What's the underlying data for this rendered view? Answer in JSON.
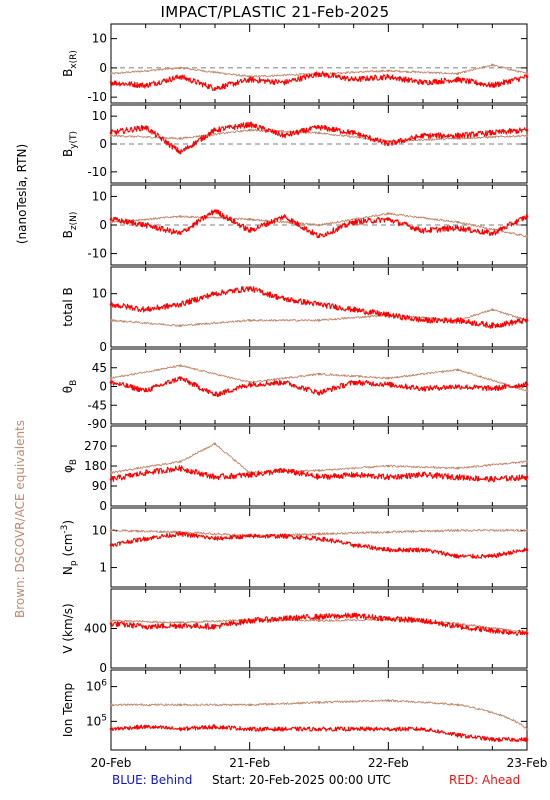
{
  "title": "IMPACT/PLASTIC   21-Feb-2025",
  "side_labels": {
    "units": "(nanoTesla, RTN)",
    "ace": "Brown: DSCOVR/ACE equivalents"
  },
  "footer": {
    "behind": "BLUE: Behind",
    "start": "Start: 20-Feb-2025 00:00 UTC",
    "ahead": "RED: Ahead"
  },
  "colors": {
    "ahead": "#ff0000",
    "ace": "#c08a70",
    "behind": "#1111cc",
    "axis": "#000000"
  },
  "chart_data": [
    {
      "type": "line",
      "id": "bx",
      "ylabel": "B_x(R)",
      "ylim": [
        -12,
        15
      ],
      "yticks": [
        10,
        0,
        -10
      ],
      "zero_line": true,
      "x_unit": "days since 20-Feb-2025 00:00 UTC",
      "series": [
        {
          "name": "Ahead",
          "color": "#ff0000",
          "x": [
            0,
            0.25,
            0.5,
            0.75,
            1.0,
            1.25,
            1.5,
            1.75,
            2.0,
            2.25,
            2.5,
            2.75,
            3.0
          ],
          "y": [
            -5,
            -6,
            -3,
            -7,
            -4,
            -5,
            -2,
            -4,
            -3,
            -5,
            -4,
            -6,
            -3
          ]
        },
        {
          "name": "DSCOVR/ACE",
          "color": "#c08a70",
          "x": [
            0,
            0.5,
            1.0,
            1.5,
            2.0,
            2.5,
            2.75,
            3.0
          ],
          "y": [
            -2,
            0,
            -3,
            -2,
            -1,
            -2,
            1,
            -2
          ]
        }
      ]
    },
    {
      "type": "line",
      "id": "by",
      "ylabel": "B_y(T)",
      "ylim": [
        -14,
        14
      ],
      "yticks": [
        10,
        0,
        -10
      ],
      "zero_line": true,
      "series": [
        {
          "name": "Ahead",
          "color": "#ff0000",
          "x": [
            0,
            0.25,
            0.5,
            0.75,
            1.0,
            1.25,
            1.5,
            1.75,
            2.0,
            2.25,
            2.5,
            2.75,
            3.0
          ],
          "y": [
            4,
            6,
            -3,
            5,
            7,
            3,
            6,
            4,
            0,
            3,
            3,
            4,
            5
          ]
        },
        {
          "name": "DSCOVR/ACE",
          "color": "#c08a70",
          "x": [
            0,
            0.5,
            1.0,
            1.5,
            2.0,
            2.5,
            3.0
          ],
          "y": [
            3,
            2,
            5,
            4,
            1,
            2,
            3
          ]
        }
      ]
    },
    {
      "type": "line",
      "id": "bz",
      "ylabel": "B_z(N)",
      "ylim": [
        -14,
        14
      ],
      "yticks": [
        10,
        0,
        -10
      ],
      "zero_line": true,
      "series": [
        {
          "name": "Ahead",
          "color": "#ff0000",
          "x": [
            0,
            0.25,
            0.5,
            0.75,
            1.0,
            1.25,
            1.5,
            1.75,
            2.0,
            2.25,
            2.5,
            2.75,
            3.0
          ],
          "y": [
            2,
            0,
            -3,
            5,
            -2,
            3,
            -4,
            1,
            2,
            -2,
            -1,
            -3,
            3
          ]
        },
        {
          "name": "DSCOVR/ACE",
          "color": "#c08a70",
          "x": [
            0,
            0.5,
            1.0,
            1.5,
            2.0,
            2.5,
            3.0
          ],
          "y": [
            1,
            3,
            2,
            0,
            4,
            1,
            -4
          ]
        }
      ]
    },
    {
      "type": "line",
      "id": "btot",
      "ylabel": "total B",
      "ylim": [
        0,
        15
      ],
      "yticks": [
        10,
        0
      ],
      "series": [
        {
          "name": "Ahead",
          "color": "#ff0000",
          "x": [
            0,
            0.25,
            0.5,
            0.75,
            1.0,
            1.25,
            1.5,
            1.75,
            2.0,
            2.25,
            2.5,
            2.75,
            3.0
          ],
          "y": [
            8,
            7,
            8,
            10,
            11,
            9,
            8,
            7,
            6,
            5,
            5,
            4,
            5
          ]
        },
        {
          "name": "DSCOVR/ACE",
          "color": "#c08a70",
          "x": [
            0,
            0.5,
            1.0,
            1.5,
            2.0,
            2.5,
            2.75,
            3.0
          ],
          "y": [
            5,
            4,
            5,
            5,
            6,
            5,
            7,
            5
          ]
        }
      ]
    },
    {
      "type": "line",
      "id": "theta",
      "ylabel": "θ_B",
      "ylim": [
        -90,
        90
      ],
      "yticks": [
        45,
        0,
        -45,
        -90
      ],
      "series": [
        {
          "name": "Ahead",
          "color": "#ff0000",
          "x": [
            0,
            0.25,
            0.5,
            0.75,
            1.0,
            1.25,
            1.5,
            1.75,
            2.0,
            2.25,
            2.5,
            2.75,
            3.0
          ],
          "y": [
            10,
            -10,
            20,
            -20,
            5,
            10,
            -15,
            10,
            5,
            -5,
            0,
            -5,
            5
          ]
        },
        {
          "name": "DSCOVR/ACE",
          "color": "#c08a70",
          "x": [
            0,
            0.5,
            1.0,
            1.5,
            2.0,
            2.5,
            3.0
          ],
          "y": [
            20,
            50,
            10,
            30,
            20,
            40,
            -10
          ]
        }
      ]
    },
    {
      "type": "line",
      "id": "phi",
      "ylabel": "φ_B",
      "ylim": [
        0,
        360
      ],
      "yticks": [
        270,
        180,
        90,
        0
      ],
      "series": [
        {
          "name": "Ahead",
          "color": "#ff0000",
          "x": [
            0,
            0.25,
            0.5,
            0.75,
            1.0,
            1.25,
            1.5,
            1.75,
            2.0,
            2.25,
            2.5,
            2.75,
            3.0
          ],
          "y": [
            120,
            150,
            170,
            130,
            140,
            160,
            130,
            140,
            130,
            140,
            130,
            120,
            130
          ]
        },
        {
          "name": "DSCOVR/ACE",
          "color": "#c08a70",
          "x": [
            0,
            0.5,
            0.75,
            1.0,
            1.5,
            2.0,
            2.5,
            3.0
          ],
          "y": [
            150,
            200,
            280,
            150,
            160,
            180,
            170,
            200
          ]
        }
      ]
    },
    {
      "type": "line",
      "id": "np",
      "ylabel": "N_p (cm^-3)",
      "log": true,
      "ylim": [
        0.3,
        40
      ],
      "yticks": [
        10,
        1
      ],
      "series": [
        {
          "name": "Ahead",
          "color": "#ff0000",
          "x": [
            0,
            0.25,
            0.5,
            0.75,
            1.0,
            1.25,
            1.5,
            1.75,
            2.0,
            2.25,
            2.5,
            2.75,
            3.0
          ],
          "y": [
            4,
            6,
            8,
            6,
            7,
            7,
            6,
            4,
            3,
            3,
            2,
            2,
            3
          ]
        },
        {
          "name": "DSCOVR/ACE",
          "color": "#c08a70",
          "x": [
            0,
            0.5,
            1.0,
            1.5,
            2.0,
            2.5,
            3.0
          ],
          "y": [
            10,
            9,
            7,
            8,
            9,
            10,
            10
          ]
        }
      ]
    },
    {
      "type": "line",
      "id": "v",
      "ylabel": "V (km/s)",
      "ylim": [
        0,
        800
      ],
      "yticks": [
        400,
        0
      ],
      "series": [
        {
          "name": "Ahead",
          "color": "#ff0000",
          "x": [
            0,
            0.25,
            0.5,
            0.75,
            1.0,
            1.25,
            1.5,
            1.75,
            2.0,
            2.25,
            2.5,
            2.75,
            3.0
          ],
          "y": [
            450,
            420,
            430,
            420,
            480,
            500,
            520,
            530,
            500,
            480,
            420,
            380,
            350
          ]
        },
        {
          "name": "DSCOVR/ACE",
          "color": "#c08a70",
          "x": [
            0,
            0.5,
            1.0,
            1.5,
            2.0,
            2.5,
            3.0
          ],
          "y": [
            480,
            460,
            490,
            480,
            490,
            450,
            360
          ]
        }
      ]
    },
    {
      "type": "line",
      "id": "temp",
      "ylabel": "Ion Temp",
      "log": true,
      "ylim": [
        15000,
        3000000
      ],
      "ytick_labels": [
        "10^6",
        "10^5"
      ],
      "yticks": [
        1000000,
        100000
      ],
      "series": [
        {
          "name": "Ahead",
          "color": "#ff0000",
          "x": [
            0,
            0.25,
            0.5,
            0.75,
            1.0,
            1.25,
            1.5,
            1.75,
            2.0,
            2.25,
            2.5,
            2.75,
            3.0
          ],
          "y": [
            60000,
            70000,
            60000,
            70000,
            60000,
            60000,
            60000,
            60000,
            60000,
            60000,
            40000,
            30000,
            30000
          ]
        },
        {
          "name": "DSCOVR/ACE",
          "color": "#c08a70",
          "x": [
            0,
            0.5,
            1.0,
            1.5,
            2.0,
            2.5,
            3.0
          ],
          "y": [
            300000,
            300000,
            300000,
            350000,
            400000,
            300000,
            60000
          ]
        }
      ]
    }
  ],
  "x_axis": {
    "ticks": [
      0,
      1,
      2,
      3
    ],
    "tick_labels": [
      "20-Feb",
      "21-Feb",
      "22-Feb",
      "23-Feb"
    ],
    "range": [
      0,
      3
    ]
  }
}
